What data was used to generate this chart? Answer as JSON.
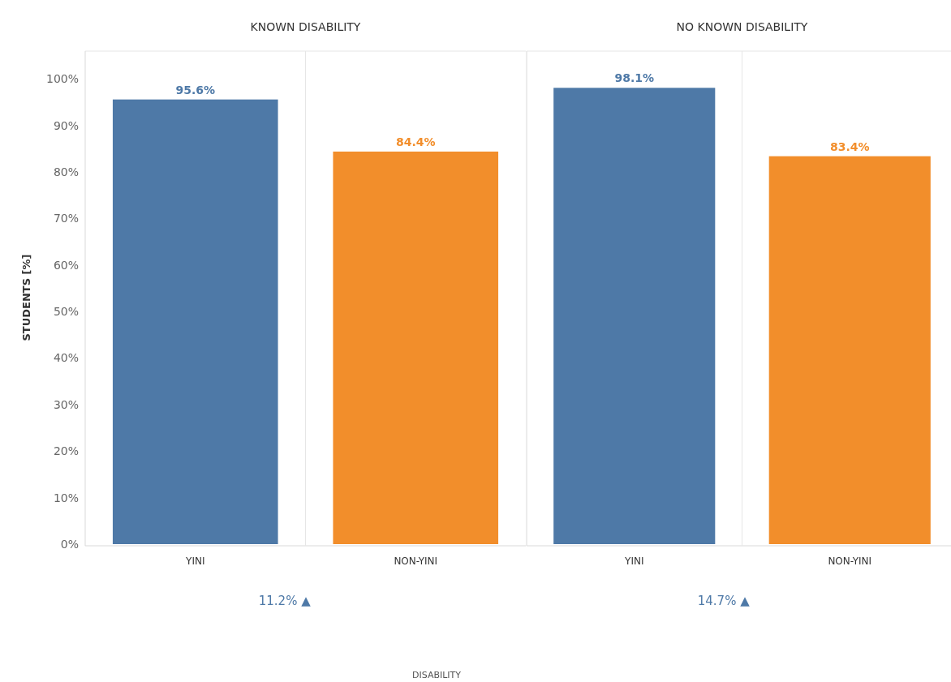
{
  "chart_data": [
    {
      "type": "bar",
      "title": "KNOWN DISABILITY",
      "ylabel": "STUDENTS [%]",
      "xlabel": "DISABILITY",
      "categories": [
        "YINI",
        "NON-YINI"
      ],
      "values": [
        95.6,
        84.4
      ],
      "colors": [
        "#4e79a7",
        "#f28e2b"
      ],
      "value_labels": [
        "95.6%",
        "84.4%"
      ],
      "ylim": [
        0,
        106
      ],
      "yticks": [
        {
          "value": 0,
          "label": "0%"
        },
        {
          "value": 10,
          "label": "10%"
        },
        {
          "value": 20,
          "label": "20%"
        },
        {
          "value": 30,
          "label": "30%"
        },
        {
          "value": 40,
          "label": "40%"
        },
        {
          "value": 50,
          "label": "50%"
        },
        {
          "value": 60,
          "label": "60%"
        },
        {
          "value": 70,
          "label": "70%"
        },
        {
          "value": 80,
          "label": "80%"
        },
        {
          "value": 90,
          "label": "90%"
        },
        {
          "value": 100,
          "label": "100%"
        }
      ],
      "annotations": [
        "11.2% ▲"
      ]
    },
    {
      "type": "bar",
      "title": "NO KNOWN DISABILITY",
      "categories": [
        "YINI",
        "NON-YINI"
      ],
      "values": [
        98.1,
        83.4
      ],
      "colors": [
        "#4e79a7",
        "#f28e2b"
      ],
      "value_labels": [
        "98.1%",
        "83.4%"
      ],
      "ylim": [
        0,
        106
      ],
      "tick_labels": "x",
      "annotations": [
        "14.7% ▲"
      ]
    }
  ]
}
